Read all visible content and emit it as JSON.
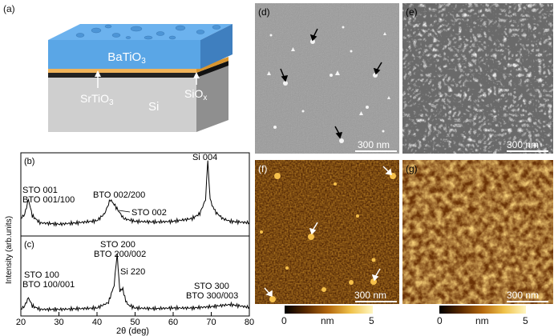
{
  "figure": {
    "panels": {
      "a": "(a)",
      "b": "(b)",
      "c": "(c)",
      "d": "(d)",
      "e": "(e)",
      "f": "(f)",
      "g": "(g)"
    }
  },
  "schematic": {
    "top_layer": "BaTiO3",
    "interlayer_left": "SrTiO3",
    "interlayer_right": "SiOx",
    "substrate": "Si",
    "colors": {
      "batio3": "#5b9bd5",
      "srtio3": "#f0b35a",
      "sio": "#222222",
      "si": "#c9c9c9"
    }
  },
  "xrd": {
    "ylabel": "Intensity (arb.units)",
    "xlabel": "2θ (deg)",
    "xticks": [
      "20",
      "30",
      "40",
      "50",
      "60",
      "70",
      "80"
    ],
    "b_labels": {
      "sto001": "STO 001",
      "bto001": "BTO 001/100",
      "bto002": "BTO 002/200",
      "sto002": "STO 002",
      "si004": "Si 004"
    },
    "c_labels": {
      "sto200": "STO 200",
      "bto200": "BTO 200/002",
      "si220": "Si 220",
      "sto100": "STO 100",
      "bto100": "BTO 100/001",
      "sto300": "STO 300",
      "bto300": "BTO 300/003"
    }
  },
  "chart_data": [
    {
      "type": "line",
      "panel": "(b)",
      "xlabel": "2θ (deg)",
      "ylabel": "Intensity (arb.units)",
      "xlim": [
        20,
        80
      ],
      "x": [
        20,
        21,
        22,
        23,
        25,
        30,
        35,
        40,
        42,
        43.5,
        44.5,
        45.5,
        47,
        50,
        55,
        60,
        65,
        67,
        68.5,
        69.1,
        69.7,
        71,
        73,
        75,
        80
      ],
      "y": [
        0.18,
        0.24,
        0.45,
        0.22,
        0.12,
        0.1,
        0.12,
        0.15,
        0.25,
        0.45,
        0.38,
        0.3,
        0.18,
        0.14,
        0.13,
        0.14,
        0.18,
        0.25,
        0.45,
        1.0,
        0.45,
        0.28,
        0.18,
        0.14,
        0.12
      ]
    },
    {
      "type": "line",
      "panel": "(c)",
      "xlabel": "2θ (deg)",
      "ylabel": "Intensity (arb.units)",
      "xlim": [
        20,
        80
      ],
      "x": [
        20,
        21,
        22,
        23,
        25,
        30,
        35,
        40,
        43,
        44.5,
        45.3,
        46,
        46.8,
        47.3,
        48,
        50,
        55,
        60,
        65,
        70,
        75,
        80
      ],
      "y": [
        0.05,
        0.1,
        0.22,
        0.1,
        0.05,
        0.05,
        0.06,
        0.07,
        0.15,
        0.4,
        0.85,
        0.3,
        0.35,
        0.22,
        0.12,
        0.07,
        0.06,
        0.07,
        0.07,
        0.09,
        0.12,
        0.08
      ]
    }
  ],
  "images": {
    "d_scale": "300 nm",
    "e_scale": "300 nm",
    "f_scale": "300 nm",
    "g_scale": "300 nm",
    "colorbar_unit": "nm",
    "colorbar_min": "0",
    "colorbar_max": "5"
  }
}
